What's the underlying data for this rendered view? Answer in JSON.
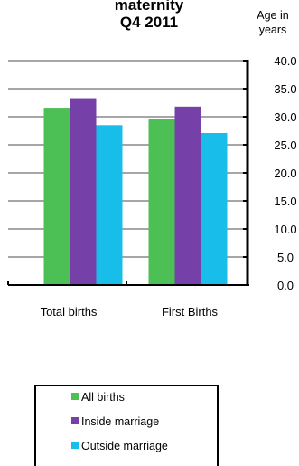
{
  "chart_data": {
    "type": "bar",
    "title_lines": [
      "maternity",
      "Q4 2011"
    ],
    "ylabel_lines": [
      "Age in",
      "years"
    ],
    "xlabel": "",
    "categories": [
      "Total births",
      "First Births"
    ],
    "series": [
      {
        "name": "All births",
        "color": "#4cbf55",
        "values": [
          31.6,
          29.6
        ]
      },
      {
        "name": "Inside marriage",
        "color": "#7541a8",
        "values": [
          33.3,
          31.8
        ]
      },
      {
        "name": "Outside marriage",
        "color": "#19bde9",
        "values": [
          28.5,
          27.1
        ]
      }
    ],
    "ylim": [
      0,
      40
    ],
    "yticks": [
      "0.0",
      "5.0",
      "10.0",
      "15.0",
      "20.0",
      "25.0",
      "30.0",
      "35.0",
      "40.0"
    ],
    "grid": true,
    "gridline_color": "#a6a6a6",
    "legend_position": "bottom"
  }
}
